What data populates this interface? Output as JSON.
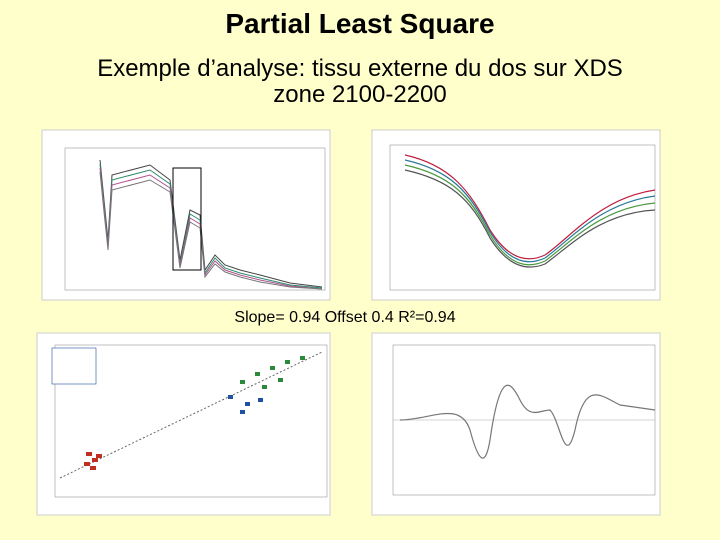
{
  "header": {
    "title": "Partial Least Square",
    "subtitle": "Exemple d’analyse: tissu externe du dos sur XDS zone 2100-2200"
  },
  "caption": "Slope= 0.94 Offset 0.4 R²=0.94"
}
